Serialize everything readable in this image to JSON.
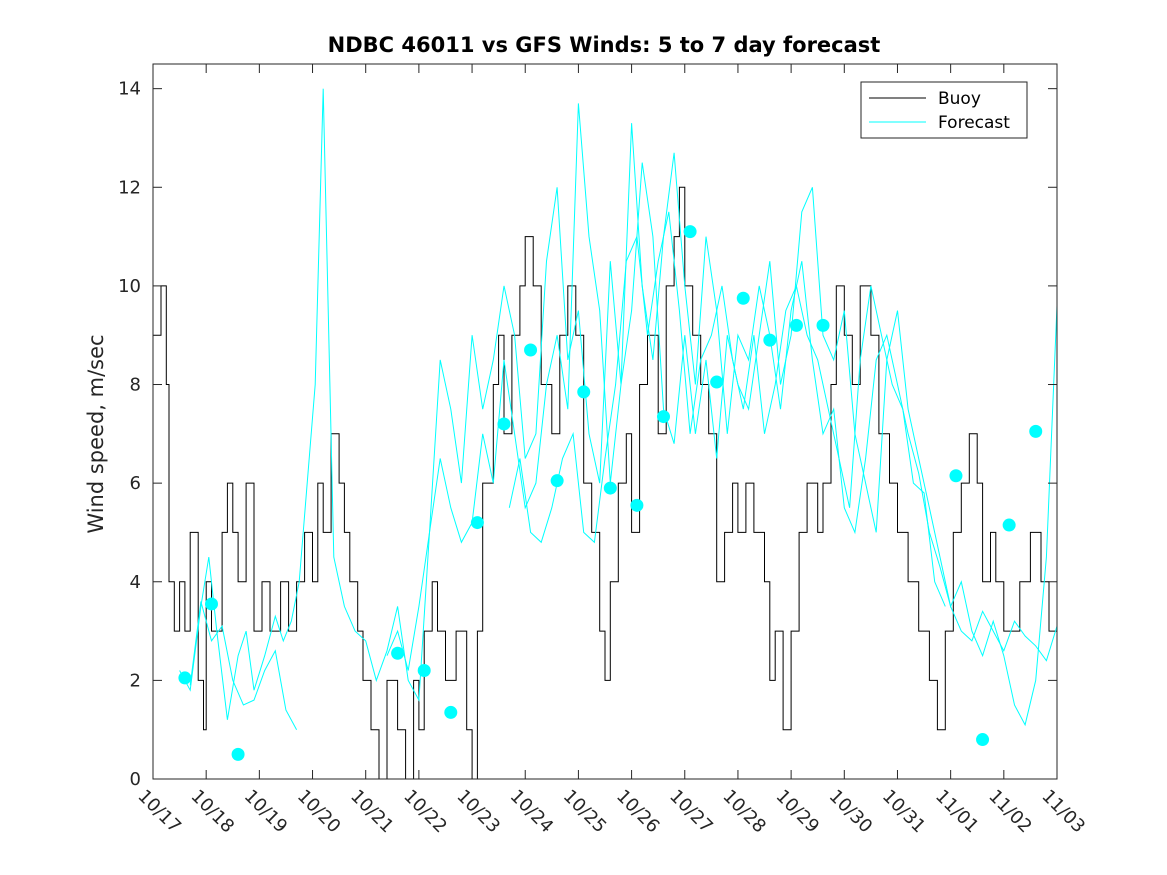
{
  "chart_data": {
    "type": "line",
    "title": "NDBC 46011 vs GFS Winds: 5 to 7 day forecast",
    "xlabel": "",
    "ylabel": "Wind speed, m/sec",
    "xlim": [
      0,
      17
    ],
    "ylim": [
      0,
      14.5
    ],
    "x_ticks": [
      "10/17",
      "10/18",
      "10/19",
      "10/20",
      "10/21",
      "10/22",
      "10/23",
      "10/24",
      "10/25",
      "10/26",
      "10/27",
      "10/28",
      "10/29",
      "10/30",
      "10/31",
      "11/01",
      "11/02",
      "11/03"
    ],
    "y_ticks": [
      0,
      2,
      4,
      6,
      8,
      10,
      12,
      14
    ],
    "legend": {
      "position": "top-right",
      "entries": [
        "Buoy",
        "Forecast"
      ]
    },
    "colors": {
      "buoy": "#000000",
      "forecast": "#00ffff",
      "axes": "#262626"
    },
    "series": [
      {
        "name": "Buoy",
        "x": [
          0,
          0.15,
          0.25,
          0.3,
          0.4,
          0.5,
          0.6,
          0.7,
          0.85,
          0.95,
          1.0,
          1.1,
          1.3,
          1.4,
          1.5,
          1.6,
          1.75,
          1.9,
          2.05,
          2.2,
          2.4,
          2.55,
          2.7,
          2.85,
          3.0,
          3.1,
          3.2,
          3.35,
          3.5,
          3.6,
          3.7,
          3.85,
          3.95,
          4.1,
          4.25,
          4.4,
          4.6,
          4.75,
          4.9,
          5.0,
          5.1,
          5.25,
          5.35,
          5.5,
          5.7,
          5.9,
          6.0,
          6.1,
          6.2,
          6.4,
          6.5,
          6.6,
          6.75,
          6.9,
          7.0,
          7.15,
          7.3,
          7.5,
          7.65,
          7.8,
          7.95,
          8.1,
          8.25,
          8.4,
          8.5,
          8.6,
          8.75,
          8.9,
          9.0,
          9.15,
          9.3,
          9.5,
          9.65,
          9.8,
          9.9,
          10.0,
          10.15,
          10.3,
          10.45,
          10.6,
          10.75,
          10.9,
          11.0,
          11.15,
          11.3,
          11.5,
          11.6,
          11.7,
          11.85,
          12.0,
          12.15,
          12.3,
          12.5,
          12.6,
          12.75,
          12.85,
          13.0,
          13.15,
          13.3,
          13.5,
          13.65,
          13.85,
          14.0,
          14.2,
          14.4,
          14.6,
          14.75,
          14.9,
          15.05,
          15.2,
          15.35,
          15.5,
          15.6,
          15.75,
          15.85,
          16.0,
          16.15,
          16.3,
          16.5,
          16.7,
          16.85,
          17.0
        ],
        "values": [
          9,
          10,
          8,
          4,
          3,
          4,
          3,
          5,
          2,
          1,
          4,
          3,
          5,
          6,
          5,
          4,
          6,
          3,
          4,
          3,
          4,
          3,
          4,
          5,
          4,
          6,
          5,
          7,
          6,
          5,
          4,
          3,
          2,
          1,
          0,
          2,
          1,
          0,
          2,
          1,
          3,
          4,
          3,
          2,
          3,
          1,
          0,
          3,
          6,
          8,
          9,
          7,
          9,
          10,
          11,
          10,
          8,
          7,
          9,
          10,
          9,
          6,
          5,
          3,
          2,
          4,
          6,
          7,
          5,
          8,
          9,
          7,
          10,
          11,
          12,
          10,
          9,
          8,
          7,
          4,
          5,
          6,
          5,
          6,
          5,
          4,
          2,
          3,
          1,
          3,
          5,
          6,
          5,
          6,
          8,
          10,
          9,
          8,
          10,
          9,
          7,
          6,
          5,
          4,
          3,
          2,
          1,
          3,
          5,
          6,
          7,
          6,
          4,
          5,
          4,
          3,
          3,
          4,
          5,
          4,
          3,
          3
        ]
      },
      {
        "name": "Forecast",
        "segments": [
          {
            "x": [
              0.5,
              0.7,
              0.9,
              1.05,
              1.2,
              1.4,
              1.6,
              1.75,
              1.9,
              2.1,
              2.3,
              2.45,
              2.6,
              2.75,
              2.9,
              3.05,
              3.2,
              3.4,
              3.6,
              3.8,
              4.0,
              4.2,
              4.4,
              4.6,
              4.8,
              5.0,
              5.2,
              5.4,
              5.6,
              5.8,
              6.0,
              6.2,
              6.4,
              6.6,
              6.8,
              7.0,
              7.2,
              7.4,
              7.6,
              7.8,
              8.0,
              8.2,
              8.4,
              8.6,
              8.8,
              9.0,
              9.2,
              9.4,
              9.6,
              9.8,
              10.0,
              10.2,
              10.4,
              10.6,
              10.8,
              11.0,
              11.2,
              11.4,
              11.6,
              11.8,
              12.0,
              12.2,
              12.4,
              12.6,
              12.8,
              13.0,
              13.2,
              13.4,
              13.6,
              13.8,
              14.0,
              14.2,
              14.4,
              14.6,
              14.8,
              15.0,
              15.2,
              15.4,
              15.6,
              15.8,
              16.0,
              16.2,
              16.4,
              16.6,
              16.8,
              17.0
            ],
            "values": [
              2.2,
              1.8,
              3.5,
              4.5,
              3.0,
              1.2,
              2.5,
              3.0,
              1.8,
              2.5,
              3.3,
              2.8,
              3.2,
              4.0,
              6.0,
              8.0,
              14.0,
              4.5,
              3.5,
              3.0,
              2.8,
              2.0,
              2.6,
              3.5,
              2.0,
              1.6,
              5.0,
              8.5,
              7.5,
              6.0,
              9.0,
              7.5,
              8.5,
              10.0,
              9.0,
              6.5,
              7.0,
              10.5,
              12.0,
              8.5,
              9.5,
              7.0,
              6.0,
              10.5,
              8.0,
              9.5,
              12.5,
              11.0,
              7.5,
              6.8,
              9.0,
              7.0,
              8.5,
              6.5,
              9.0,
              8.0,
              7.5,
              9.0,
              10.5,
              8.0,
              9.0,
              11.5,
              12.0,
              9.0,
              8.5,
              9.5,
              7.0,
              6.0,
              5.0,
              8.5,
              9.5,
              7.5,
              6.5,
              5.5,
              4.5,
              3.5,
              4.0,
              3.0,
              2.5,
              3.2,
              2.5,
              1.5,
              1.1,
              2.0,
              4.5,
              9.6
            ]
          },
          {
            "x": [
              0.7,
              0.9,
              1.1,
              1.3,
              1.5,
              1.7,
              1.9,
              2.1,
              2.3,
              2.5,
              2.7
            ],
            "values": [
              1.9,
              3.6,
              2.8,
              3.1,
              2.0,
              1.5,
              1.6,
              2.2,
              2.6,
              1.4,
              1.0
            ]
          },
          {
            "x": [
              4.4,
              4.6,
              4.8,
              5.0,
              5.2,
              5.4,
              5.6,
              5.8,
              6.0,
              6.2,
              6.4,
              6.6,
              6.8,
              7.0,
              7.2,
              7.4,
              7.6,
              7.8,
              8.0,
              8.2,
              8.4,
              8.6,
              8.8,
              9.0,
              9.2,
              9.4,
              9.6,
              9.8,
              10.0,
              10.2,
              10.4,
              10.6,
              10.8,
              11.0,
              11.2,
              11.4,
              11.6,
              11.8,
              12.0,
              12.2,
              12.4,
              12.6,
              12.8,
              13.0,
              13.2,
              13.4,
              13.6,
              13.8,
              14.0,
              14.2,
              14.4,
              14.6,
              14.8,
              15.0,
              15.2,
              15.4,
              15.6,
              15.8,
              16.0,
              16.2,
              16.4,
              16.6,
              16.8,
              17.0
            ],
            "values": [
              2.5,
              3.0,
              2.2,
              3.5,
              5.0,
              6.5,
              5.5,
              4.8,
              5.2,
              7.0,
              6.0,
              8.5,
              7.0,
              5.5,
              6.0,
              8.0,
              9.0,
              7.5,
              13.7,
              11.0,
              9.5,
              6.0,
              8.0,
              13.3,
              10.0,
              8.5,
              11.0,
              12.7,
              10.0,
              8.0,
              11.0,
              9.5,
              7.0,
              9.0,
              8.5,
              10.0,
              9.0,
              7.5,
              9.5,
              10.5,
              8.5,
              7.0,
              7.5,
              5.5,
              5.0,
              6.5,
              8.5,
              9.0,
              8.0,
              7.0,
              6.2,
              5.0,
              4.3,
              3.5,
              3.0,
              2.8,
              3.4,
              3.0,
              2.6,
              3.2,
              2.9,
              2.7,
              2.4,
              3.1
            ]
          },
          {
            "x": [
              6.7,
              6.9,
              7.1,
              7.3,
              7.5,
              7.7,
              7.9,
              8.1,
              8.3,
              8.5,
              8.7,
              8.9,
              9.1,
              9.3,
              9.5,
              9.7,
              9.9,
              10.1,
              10.3,
              10.5,
              10.7,
              10.9,
              11.1,
              11.3,
              11.5,
              11.7,
              11.9,
              12.1,
              12.3,
              12.5,
              12.7,
              12.9,
              13.1,
              13.3,
              13.5,
              13.7,
              13.9,
              14.1,
              14.3,
              14.5,
              14.7,
              14.9
            ],
            "values": [
              5.5,
              6.5,
              5.0,
              4.8,
              5.5,
              6.5,
              7.0,
              5.0,
              4.8,
              6.5,
              8.0,
              10.5,
              11.0,
              9.0,
              10.5,
              11.5,
              9.5,
              7.0,
              8.5,
              9.0,
              10.0,
              8.5,
              7.5,
              9.0,
              7.0,
              8.0,
              9.5,
              10.0,
              9.0,
              8.5,
              7.5,
              6.5,
              5.5,
              8.5,
              10.0,
              9.0,
              8.0,
              7.5,
              6.0,
              5.8,
              4.0,
              3.5
            ]
          }
        ]
      }
    ],
    "markers": {
      "name": "Forecast",
      "x": [
        0.6,
        1.1,
        1.6,
        4.6,
        5.1,
        5.6,
        6.1,
        6.6,
        7.1,
        7.6,
        8.1,
        8.6,
        9.1,
        9.6,
        10.1,
        10.6,
        11.1,
        11.6,
        12.1,
        12.6,
        15.1,
        15.6,
        16.1,
        16.6
      ],
      "values": [
        2.05,
        3.55,
        0.5,
        2.55,
        2.2,
        1.35,
        5.2,
        7.2,
        8.7,
        6.05,
        7.85,
        5.9,
        5.55,
        7.35,
        11.1,
        8.05,
        9.75,
        8.9,
        9.2,
        9.2,
        6.15,
        0.8,
        5.15,
        7.05
      ]
    }
  }
}
